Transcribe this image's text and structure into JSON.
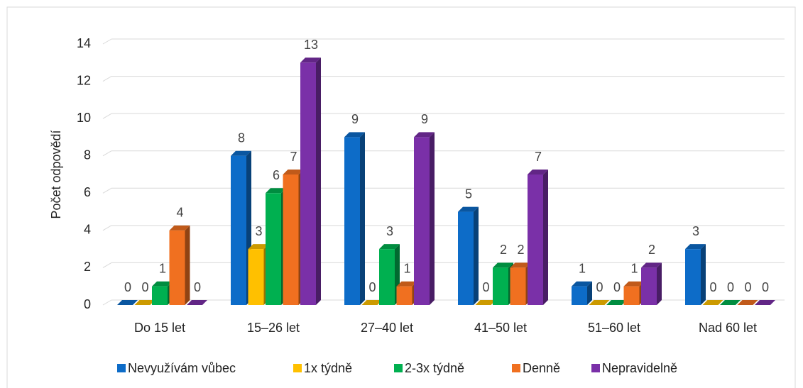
{
  "chart_data": {
    "type": "bar3d",
    "y_label": "Počet odpovědí",
    "categories": [
      "Do 15 let",
      "15–26 let",
      "27–40 let",
      "41–50 let",
      "51–60 let",
      "Nad 60 let"
    ],
    "series": [
      {
        "name": "Nevyužívám vůbec",
        "color": "#0d6cc8",
        "values": [
          0,
          8,
          9,
          5,
          1,
          3
        ]
      },
      {
        "name": "1x týdně",
        "color": "#ffc000",
        "values": [
          0,
          3,
          0,
          0,
          0,
          0
        ]
      },
      {
        "name": "2-3x týdně",
        "color": "#00b050",
        "values": [
          1,
          6,
          3,
          2,
          0,
          0
        ]
      },
      {
        "name": "Denně",
        "color": "#f07020",
        "values": [
          4,
          7,
          1,
          2,
          1,
          0
        ]
      },
      {
        "name": "Nepravidelně",
        "color": "#7a30a8",
        "values": [
          0,
          13,
          9,
          7,
          2,
          0
        ]
      }
    ],
    "ylim": [
      0,
      14
    ],
    "yticks": [
      0,
      2,
      4,
      6,
      8,
      10,
      12,
      14
    ],
    "grid": true,
    "legend": "bottom"
  }
}
